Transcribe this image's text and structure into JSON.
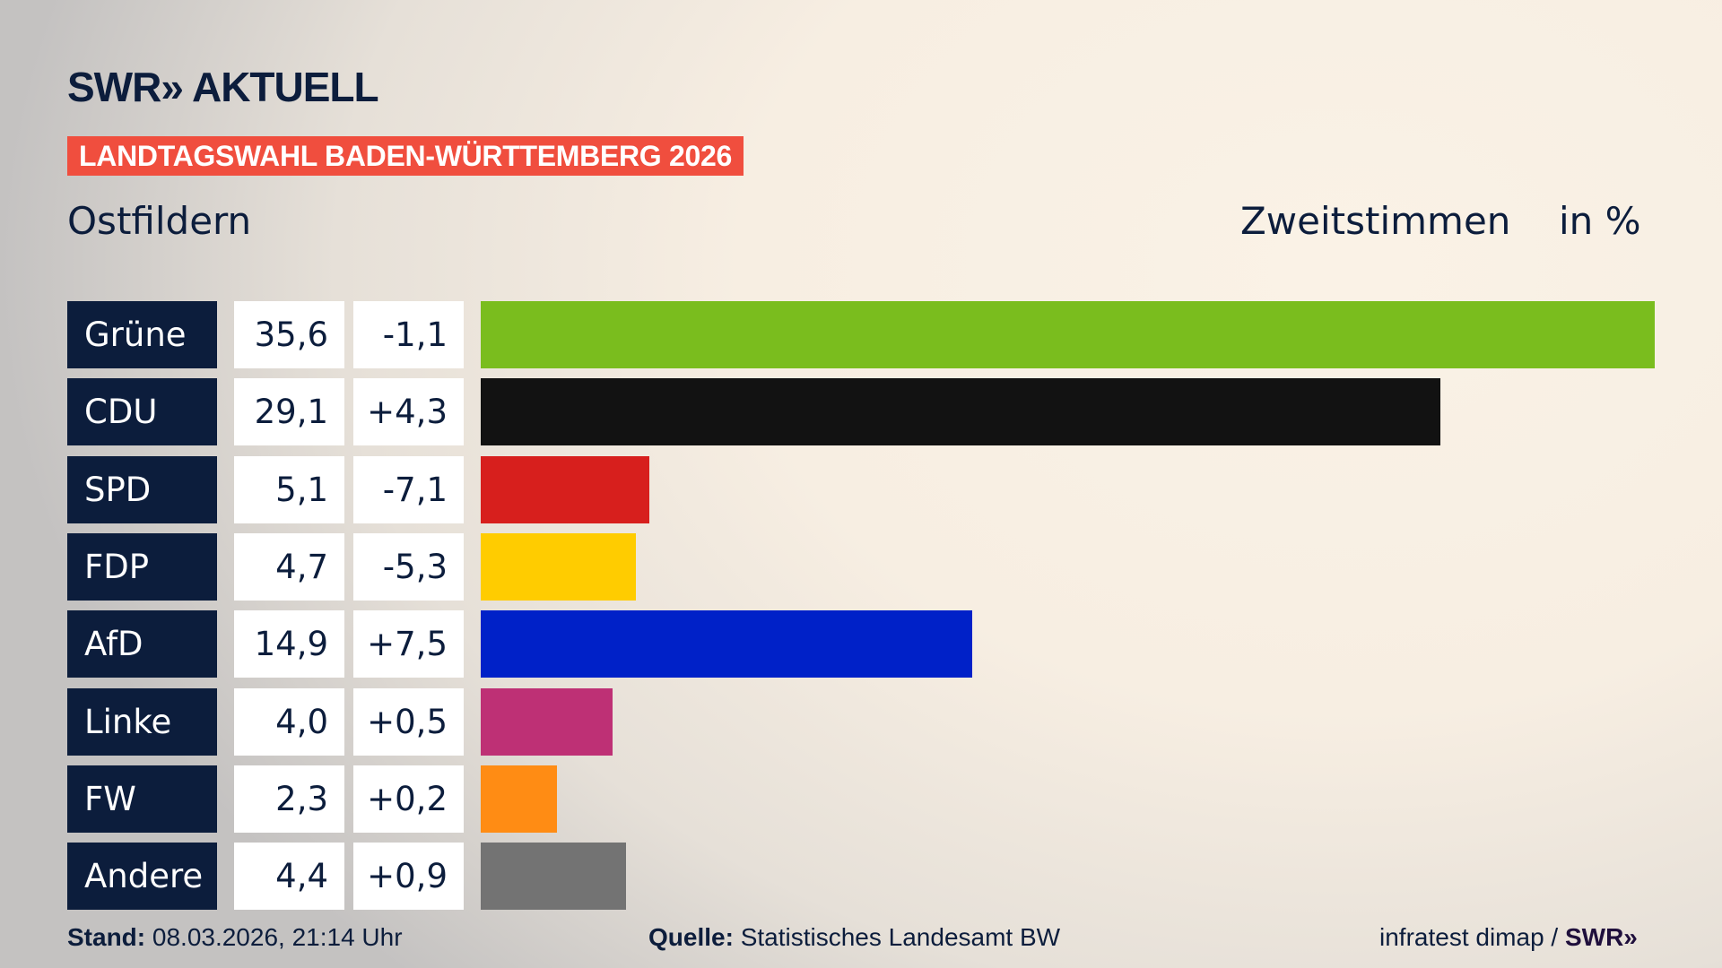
{
  "header": {
    "logo_text": "SWR» AKTUELL",
    "banner": "LANDTAGSWAHL BADEN-WÜRTTEMBERG 2026",
    "region": "Ostfildern",
    "metric": "Zweitstimmen",
    "unit": "in %"
  },
  "chart_data": {
    "type": "bar",
    "orientation": "horizontal",
    "categories": [
      "Grüne",
      "CDU",
      "SPD",
      "FDP",
      "AfD",
      "Linke",
      "FW",
      "Andere"
    ],
    "values": [
      35.6,
      29.1,
      5.1,
      4.7,
      14.9,
      4.0,
      2.3,
      4.4
    ],
    "value_labels": [
      "35,6",
      "29,1",
      "5,1",
      "4,7",
      "14,9",
      "4,0",
      "2,3",
      "4,4"
    ],
    "change_labels": [
      "-1,1",
      "+4,3",
      "-7,1",
      "-5,3",
      "+7,5",
      "+0,5",
      "+0,2",
      "+0,9"
    ],
    "changes": [
      -1.1,
      4.3,
      -7.1,
      -5.3,
      7.5,
      0.5,
      0.2,
      0.9
    ],
    "colors": [
      "#7abd1e",
      "#121212",
      "#d71f1d",
      "#ffcc00",
      "#0021c8",
      "#be3075",
      "#ff8c14",
      "#737373"
    ],
    "grid": false
  },
  "footer": {
    "stand_label": "Stand:",
    "stand_value": "08.03.2026, 21:14 Uhr",
    "source_label": "Quelle:",
    "source_value": "Statistisches Landesamt BW",
    "credit": "infratest dimap /",
    "credit_logo": "SWR»"
  }
}
